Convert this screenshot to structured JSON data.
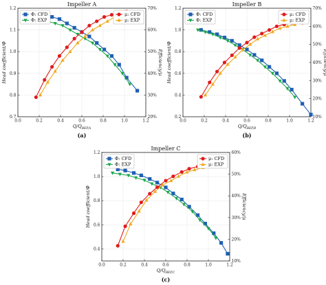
{
  "colors": {
    "phi_cfd": "#1f5fb4",
    "phi_exp": "#1aa84a",
    "mu_cfd": "#e01b1b",
    "mu_exp": "#f2a81d"
  },
  "chart_data": [
    {
      "type": "line",
      "title": "Impeller A",
      "panel_label": "(a)",
      "xlabel": "Q/Q_BEP,A",
      "ylabel": "Head coefficient/Φ",
      "y2label": "Efficiency/μ",
      "xlim": [
        0.0,
        1.2
      ],
      "ylim": [
        0.7,
        1.2
      ],
      "y2lim": [
        20,
        70
      ],
      "xticks": [
        "0.0",
        "0.2",
        "0.4",
        "0.6",
        "0.8",
        "1.0",
        "1.2"
      ],
      "yticks": [
        "0.7",
        "0.8",
        "0.9",
        "1.0",
        "1.1",
        "1.2"
      ],
      "y2ticks": [
        "20%",
        "30%",
        "40%",
        "50%",
        "60%",
        "70%"
      ],
      "legends": [
        {
          "placement": "top-left",
          "entries": [
            "Φ: CFD",
            "Φ: EXP"
          ]
        },
        {
          "placement": "top-right",
          "entries": [
            "μ: CFD",
            "μ: EXP"
          ]
        }
      ],
      "series": [
        {
          "name": "Φ: CFD",
          "axis": "left",
          "marker": "square",
          "color": "#1f5fb4",
          "x": [
            0.17,
            0.25,
            0.32,
            0.39,
            0.46,
            0.53,
            0.6,
            0.67,
            0.74,
            0.81,
            0.88,
            0.95,
            1.02,
            1.12
          ],
          "y": [
            1.18,
            1.17,
            1.16,
            1.15,
            1.13,
            1.11,
            1.09,
            1.07,
            1.04,
            1.01,
            0.98,
            0.94,
            0.88,
            0.82
          ]
        },
        {
          "name": "Φ: EXP",
          "axis": "left",
          "marker": "triangle-down",
          "color": "#1aa84a",
          "x": [
            0.21,
            0.28,
            0.35,
            0.42,
            0.49,
            0.56,
            0.63,
            0.7,
            0.77,
            0.84,
            0.91,
            0.98,
            1.05
          ],
          "y": [
            1.15,
            1.14,
            1.13,
            1.12,
            1.1,
            1.08,
            1.06,
            1.04,
            1.01,
            0.98,
            0.94,
            0.9,
            0.85
          ]
        },
        {
          "name": "μ: CFD",
          "axis": "right",
          "marker": "circle",
          "color": "#e01b1b",
          "x": [
            0.17,
            0.25,
            0.32,
            0.39,
            0.46,
            0.53,
            0.6,
            0.67,
            0.74,
            0.81,
            0.88,
            0.95,
            1.02,
            1.12
          ],
          "y": [
            29,
            37,
            43,
            48,
            52,
            56,
            59,
            62,
            64,
            66,
            67,
            68,
            68.5,
            68
          ]
        },
        {
          "name": "μ: EXP",
          "axis": "right",
          "marker": "triangle-up",
          "color": "#f2a81d",
          "x": [
            0.21,
            0.28,
            0.35,
            0.42,
            0.49,
            0.56,
            0.63,
            0.7,
            0.77,
            0.84,
            0.91,
            0.98,
            1.05
          ],
          "y": [
            30,
            36,
            41,
            46,
            50,
            54,
            57,
            60,
            62,
            64,
            66,
            67.5,
            68
          ]
        }
      ]
    },
    {
      "type": "line",
      "title": "Impeller B",
      "panel_label": "(b)",
      "xlabel": "Q/Q_BEP,B",
      "ylabel": "Head coefficient/Φ",
      "y2label": "Efficiency/μ",
      "xlim": [
        0.0,
        1.2
      ],
      "ylim": [
        0.2,
        1.2
      ],
      "y2lim": [
        10,
        70
      ],
      "xticks": [
        "0.0",
        "0.2",
        "0.4",
        "0.6",
        "0.8",
        "1.0",
        "1.2"
      ],
      "yticks": [
        "0.2",
        "0.4",
        "0.6",
        "0.8",
        "1.0",
        "1.2"
      ],
      "y2ticks": [
        "10%",
        "20%",
        "30%",
        "40%",
        "50%",
        "60%",
        "70%"
      ],
      "legends": [
        {
          "placement": "top-left",
          "entries": [
            "Φ: CFD",
            "Φ: EXP"
          ]
        },
        {
          "placement": "top-right",
          "entries": [
            "μ: CFD",
            "μ: EXP"
          ]
        }
      ],
      "series": [
        {
          "name": "Φ: CFD",
          "axis": "left",
          "marker": "square",
          "color": "#1f5fb4",
          "x": [
            0.17,
            0.25,
            0.32,
            0.39,
            0.46,
            0.53,
            0.6,
            0.67,
            0.74,
            0.81,
            0.88,
            0.95,
            1.02,
            1.12,
            1.2
          ],
          "y": [
            1.0,
            0.98,
            0.96,
            0.93,
            0.9,
            0.86,
            0.82,
            0.77,
            0.72,
            0.66,
            0.6,
            0.53,
            0.45,
            0.32,
            0.22
          ]
        },
        {
          "name": "Φ: EXP",
          "axis": "left",
          "marker": "triangle-down",
          "color": "#1aa84a",
          "x": [
            0.14,
            0.21,
            0.28,
            0.35,
            0.42,
            0.49,
            0.56,
            0.63,
            0.7,
            0.77,
            0.84,
            0.91,
            0.98,
            1.05
          ],
          "y": [
            1.0,
            0.98,
            0.96,
            0.93,
            0.9,
            0.86,
            0.82,
            0.77,
            0.72,
            0.66,
            0.6,
            0.53,
            0.46,
            0.38
          ]
        },
        {
          "name": "μ: CFD",
          "axis": "right",
          "marker": "circle",
          "color": "#e01b1b",
          "x": [
            0.17,
            0.25,
            0.32,
            0.39,
            0.46,
            0.53,
            0.6,
            0.67,
            0.74,
            0.81,
            0.88,
            0.95,
            1.02,
            1.12
          ],
          "y": [
            21,
            29,
            35,
            40,
            44,
            48,
            51,
            54,
            56,
            58,
            60,
            61,
            62,
            62
          ]
        },
        {
          "name": "μ: EXP",
          "axis": "right",
          "marker": "triangle-up",
          "color": "#f2a81d",
          "x": [
            0.21,
            0.28,
            0.35,
            0.42,
            0.49,
            0.56,
            0.63,
            0.7,
            0.77,
            0.84,
            0.91,
            0.98,
            1.05
          ],
          "y": [
            22,
            28,
            34,
            39,
            43,
            47,
            50,
            53,
            55,
            57,
            59,
            60,
            61
          ]
        }
      ]
    },
    {
      "type": "line",
      "title": "Impeller C",
      "panel_label": "(c)",
      "xlabel": "Q/Q_BEP,C",
      "ylabel": "Head coefficient/Φ",
      "y2label": "Efficiency/μ",
      "xlim": [
        0.0,
        1.2
      ],
      "ylim": [
        0.3,
        1.2
      ],
      "y2lim": [
        10,
        60
      ],
      "xticks": [
        "0.0",
        "0.2",
        "0.4",
        "0.6",
        "0.8",
        "1.0",
        "1.2"
      ],
      "yticks": [
        "0.4",
        "0.6",
        "0.8",
        "1.0",
        "1.2"
      ],
      "y2ticks": [
        "10%",
        "20%",
        "30%",
        "40%",
        "50%",
        "60%"
      ],
      "legends": [
        {
          "placement": "top-left",
          "entries": [
            "Φ: CFD",
            "Φ: EXP"
          ]
        },
        {
          "placement": "top-right",
          "entries": [
            "μ: CFD",
            "μ: EXP"
          ]
        }
      ],
      "series": [
        {
          "name": "Φ: CFD",
          "axis": "left",
          "marker": "square",
          "color": "#1f5fb4",
          "x": [
            0.15,
            0.22,
            0.3,
            0.37,
            0.45,
            0.52,
            0.6,
            0.67,
            0.75,
            0.82,
            0.9,
            0.97,
            1.05,
            1.12,
            1.18
          ],
          "y": [
            1.06,
            1.05,
            1.03,
            1.01,
            0.98,
            0.95,
            0.91,
            0.86,
            0.81,
            0.75,
            0.68,
            0.61,
            0.53,
            0.45,
            0.36
          ]
        },
        {
          "name": "Φ: EXP",
          "axis": "left",
          "marker": "triangle-down",
          "color": "#1aa84a",
          "x": [
            0.1,
            0.17,
            0.25,
            0.32,
            0.4,
            0.47,
            0.55,
            0.62,
            0.7,
            0.77,
            0.85,
            0.92,
            1.0,
            1.07
          ],
          "y": [
            1.03,
            1.02,
            1.01,
            0.99,
            0.97,
            0.94,
            0.91,
            0.87,
            0.82,
            0.77,
            0.71,
            0.64,
            0.57,
            0.49
          ]
        },
        {
          "name": "μ: CFD",
          "axis": "right",
          "marker": "circle",
          "color": "#e01b1b",
          "x": [
            0.15,
            0.22,
            0.3,
            0.37,
            0.45,
            0.52,
            0.6,
            0.67,
            0.75,
            0.82,
            0.9,
            0.97,
            1.05,
            1.1
          ],
          "y": [
            17,
            26,
            32,
            37,
            41,
            44,
            47,
            49,
            51,
            52.5,
            53.5,
            54,
            54,
            54
          ]
        },
        {
          "name": "μ: EXP",
          "axis": "right",
          "marker": "triangle-up",
          "color": "#f2a81d",
          "x": [
            0.2,
            0.27,
            0.35,
            0.42,
            0.5,
            0.57,
            0.65,
            0.72,
            0.8,
            0.87,
            0.95,
            1.02
          ],
          "y": [
            19,
            27,
            33,
            38,
            42,
            45,
            47,
            49,
            51,
            52,
            53,
            54
          ]
        }
      ]
    }
  ]
}
